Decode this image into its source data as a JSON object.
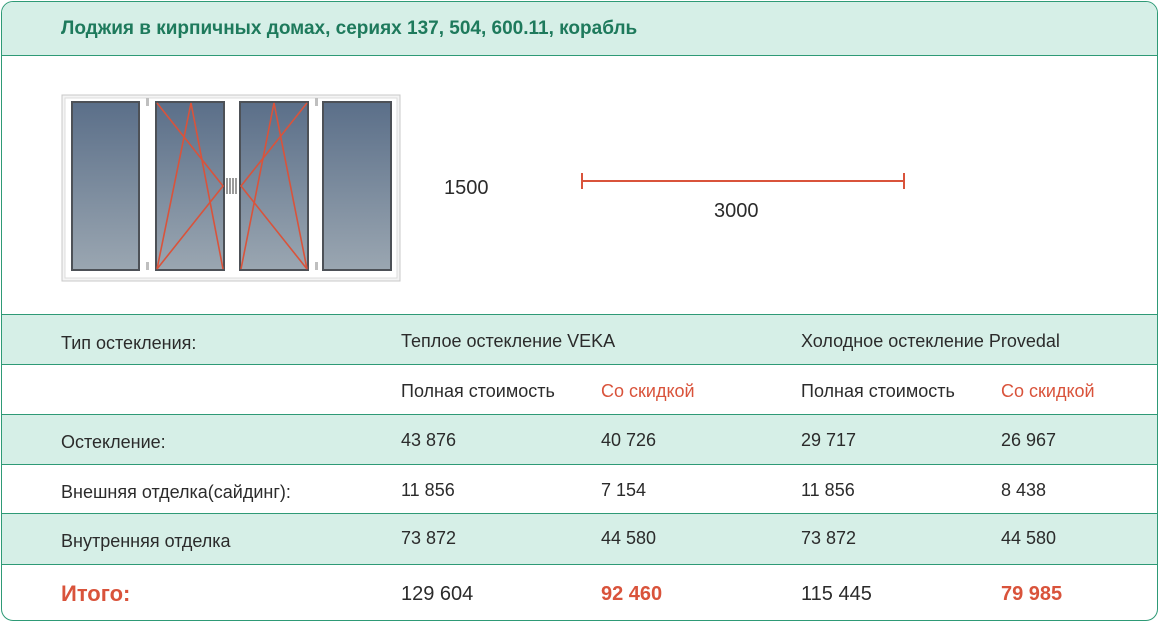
{
  "header": {
    "title": "Лоджия в кирпичных домах, сериях 137, 504, 600.11, корабль"
  },
  "diagram": {
    "height_label": "1500",
    "width_label": "3000"
  },
  "table": {
    "type_label": "Тип остекления:",
    "warm_title": "Теплое остекление VEKA",
    "cold_title": "Холодное остекление Provedal",
    "full_price": "Полная стоимость",
    "discount": "Со скидкой",
    "rows": [
      {
        "label": "Остекление:",
        "warm_full": "43 876",
        "warm_disc": "40 726",
        "cold_full": "29 717",
        "cold_disc": "26 967"
      },
      {
        "label": "Внешняя отделка(сайдинг):",
        "warm_full": "11 856",
        "warm_disc": "7 154",
        "cold_full": "11 856",
        "cold_disc": "8 438"
      },
      {
        "label": "Внутренняя отделка",
        "warm_full": "73 872",
        "warm_disc": "44 580",
        "cold_full": "73 872",
        "cold_disc": "44 580"
      }
    ],
    "total": {
      "label": "Итого:",
      "warm_full": "129 604",
      "warm_disc": "92 460",
      "cold_full": "115 445",
      "cold_disc": "79 985"
    }
  },
  "colors": {
    "accent": "#d9533b",
    "brand_green": "#2e9a76",
    "header_bg": "#d6efe7"
  }
}
